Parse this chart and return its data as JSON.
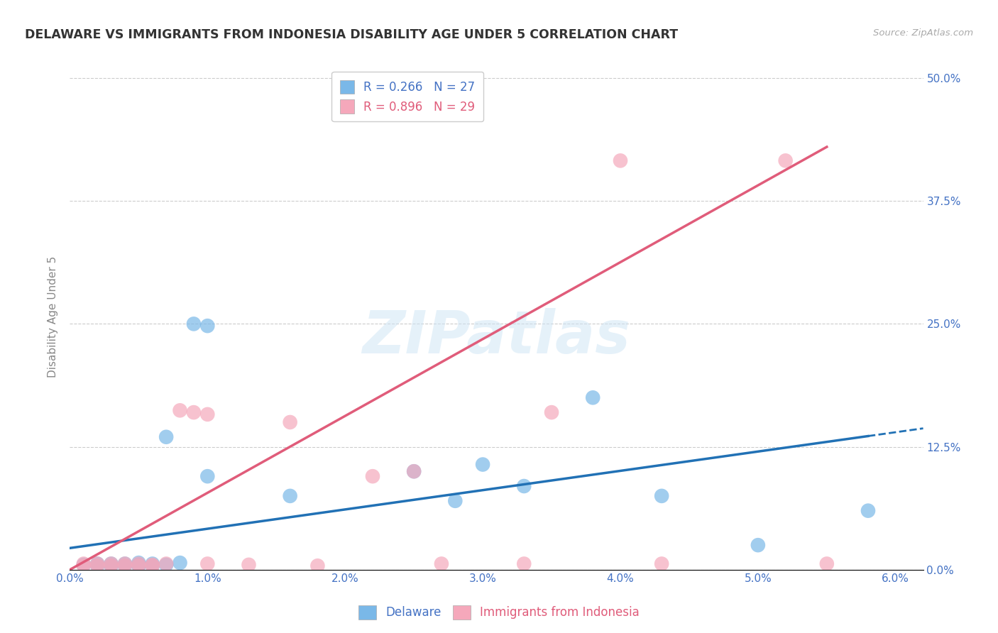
{
  "title": "DELAWARE VS IMMIGRANTS FROM INDONESIA DISABILITY AGE UNDER 5 CORRELATION CHART",
  "source": "Source: ZipAtlas.com",
  "ylabel": "Disability Age Under 5",
  "xlim": [
    0.0,
    0.062
  ],
  "ylim": [
    0.0,
    0.515
  ],
  "xticks": [
    0.0,
    0.01,
    0.02,
    0.03,
    0.04,
    0.05,
    0.06
  ],
  "xticklabels": [
    "0.0%",
    "1.0%",
    "2.0%",
    "3.0%",
    "4.0%",
    "5.0%",
    "6.0%"
  ],
  "yticks": [
    0.0,
    0.125,
    0.25,
    0.375,
    0.5
  ],
  "yticklabels": [
    "0.0%",
    "12.5%",
    "25.0%",
    "37.5%",
    "50.0%"
  ],
  "delaware_R": 0.266,
  "delaware_N": 27,
  "indonesia_R": 0.896,
  "indonesia_N": 29,
  "delaware_color": "#7ab8e8",
  "indonesia_color": "#f5a8bb",
  "delaware_line_color": "#2171b5",
  "indonesia_line_color": "#e05c7a",
  "watermark_text": "ZIPatlas",
  "delaware_x": [
    0.001,
    0.002,
    0.002,
    0.003,
    0.003,
    0.004,
    0.004,
    0.005,
    0.005,
    0.005,
    0.006,
    0.006,
    0.007,
    0.007,
    0.008,
    0.009,
    0.01,
    0.01,
    0.016,
    0.025,
    0.028,
    0.03,
    0.033,
    0.038,
    0.043,
    0.05,
    0.058
  ],
  "delaware_y": [
    0.005,
    0.004,
    0.006,
    0.004,
    0.006,
    0.004,
    0.006,
    0.004,
    0.005,
    0.007,
    0.004,
    0.006,
    0.135,
    0.005,
    0.007,
    0.25,
    0.248,
    0.095,
    0.075,
    0.1,
    0.07,
    0.107,
    0.085,
    0.175,
    0.075,
    0.025,
    0.06
  ],
  "indonesia_x": [
    0.001,
    0.001,
    0.002,
    0.002,
    0.003,
    0.003,
    0.004,
    0.004,
    0.005,
    0.005,
    0.006,
    0.006,
    0.007,
    0.008,
    0.009,
    0.01,
    0.01,
    0.013,
    0.016,
    0.018,
    0.022,
    0.025,
    0.027,
    0.033,
    0.035,
    0.04,
    0.043,
    0.052,
    0.055
  ],
  "indonesia_y": [
    0.004,
    0.006,
    0.004,
    0.006,
    0.004,
    0.006,
    0.004,
    0.006,
    0.004,
    0.006,
    0.004,
    0.005,
    0.006,
    0.162,
    0.16,
    0.158,
    0.006,
    0.005,
    0.15,
    0.004,
    0.095,
    0.1,
    0.006,
    0.006,
    0.16,
    0.416,
    0.006,
    0.416,
    0.006
  ],
  "del_line_x0": 0.0,
  "del_line_y0": 0.022,
  "del_line_x1": 0.055,
  "del_line_y1": 0.13,
  "ind_line_x0": 0.0,
  "ind_line_y0": -0.01,
  "ind_line_x1": 0.055,
  "ind_line_y1": 0.43
}
